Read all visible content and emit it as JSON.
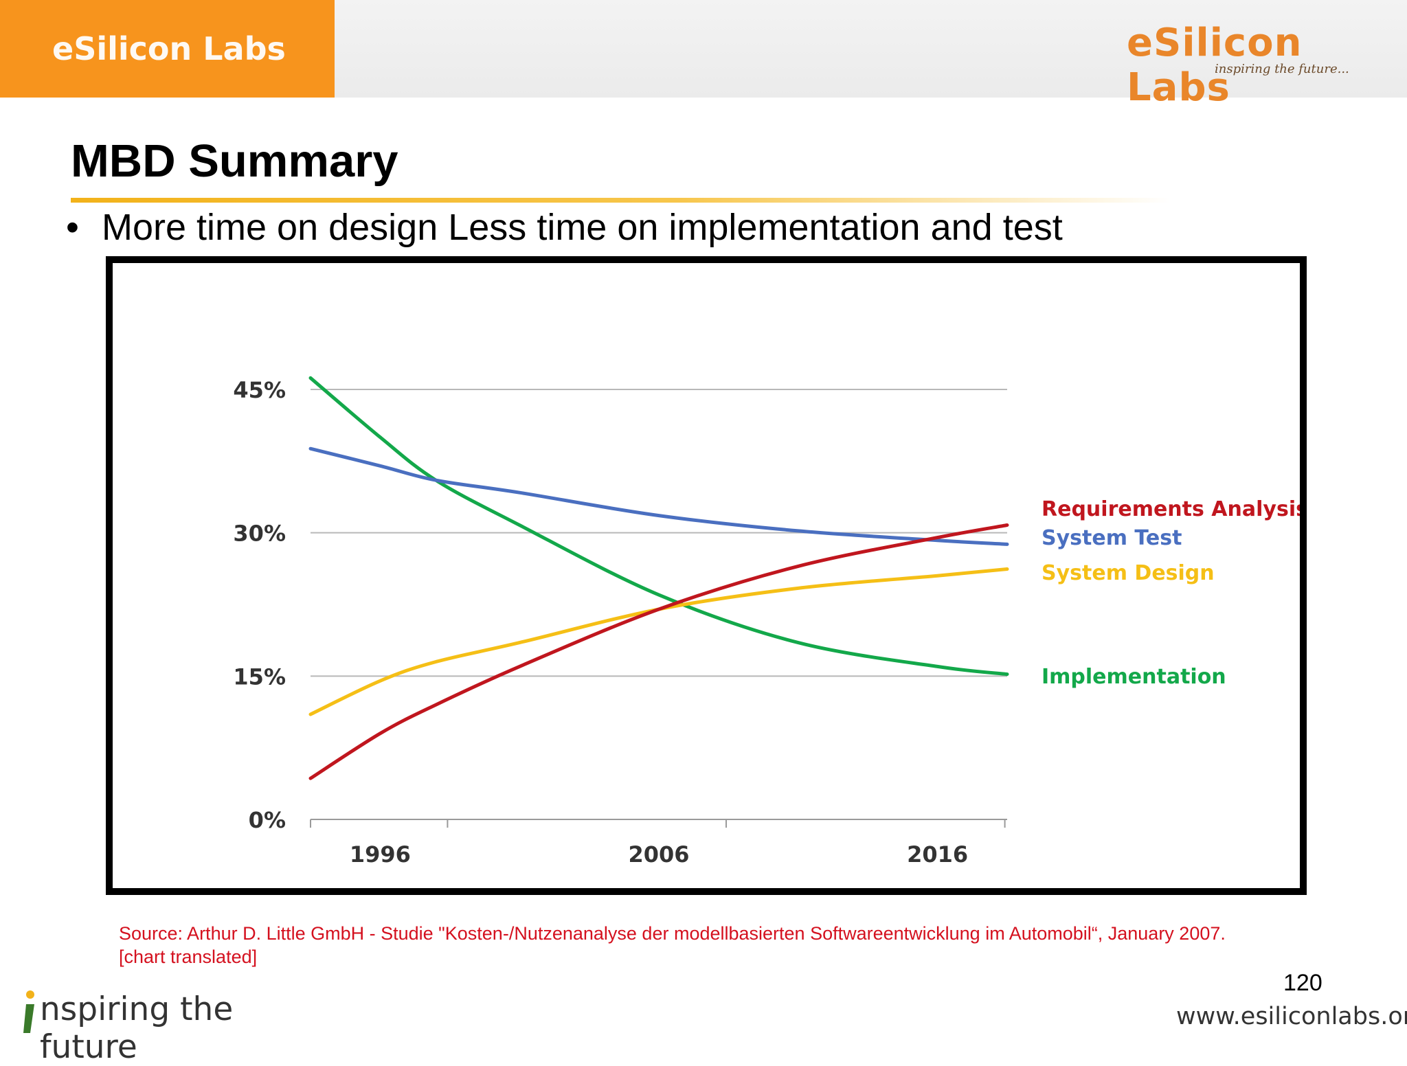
{
  "header": {
    "tab_label": "eSilicon Labs",
    "logo_text": "eSilicon Labs",
    "logo_tagline": "inspiring the future..."
  },
  "slide": {
    "title": "MBD Summary",
    "bullet": "More time on design Less time on implementation and test",
    "source_line1": "Source: Arthur D. Little GmbH - Studie \"Kosten-/Nutzenanalyse der modellbasierten Softwareentwicklung im Automobil“, January 2007.",
    "source_line2": "[chart translated]",
    "page_number": "120"
  },
  "footer": {
    "slogan": "nspiring the future",
    "website": "www.esiliconlabs.org"
  },
  "colors": {
    "accent_orange": "#f7941d",
    "requirements": "#c0161e",
    "system_test": "#4a6fc0",
    "system_design": "#f5bf16",
    "implementation": "#13a84a"
  },
  "chart_data": {
    "type": "line",
    "x": [
      1993.5,
      1996,
      1998,
      2001,
      2006,
      2011,
      2016,
      2018.5
    ],
    "xticks": [
      "1996",
      "2006",
      "2016"
    ],
    "xtick_values": [
      1996,
      2006,
      2016
    ],
    "yticks": [
      "45%",
      "30%",
      "15%",
      "0%"
    ],
    "ytick_values": [
      45,
      30,
      15,
      0
    ],
    "ylim": [
      0,
      45
    ],
    "xlim": [
      1993.5,
      2018.5
    ],
    "grid": "horizontal",
    "legend": "right",
    "series": [
      {
        "name": "Requirements Analysis",
        "color_key": "requirements",
        "values": [
          4.3,
          9,
          12,
          16,
          22,
          26.5,
          29.5,
          30.8
        ]
      },
      {
        "name": "System Test",
        "color_key": "system_test",
        "values": [
          38.8,
          37,
          35.5,
          34.2,
          31.8,
          30.2,
          29.2,
          28.8
        ]
      },
      {
        "name": "System Design",
        "color_key": "system_design",
        "values": [
          11,
          14.5,
          16.5,
          18.5,
          22,
          24.2,
          25.5,
          26.2
        ]
      },
      {
        "name": "Implementation",
        "color_key": "implementation",
        "values": [
          46.2,
          40,
          35.5,
          30.8,
          23.5,
          18.5,
          16,
          15.2
        ]
      }
    ]
  }
}
